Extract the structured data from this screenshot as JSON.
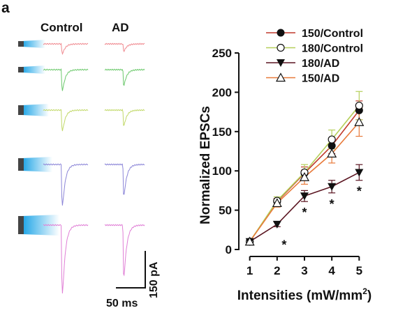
{
  "panel_label": "a",
  "traces": {
    "columns": [
      "Control",
      "AD"
    ],
    "rows": [
      {
        "color": "#f08a90"
      },
      {
        "color": "#6cc96c"
      },
      {
        "color": "#c2d96a"
      },
      {
        "color": "#8c86d8"
      },
      {
        "color": "#e07fd6"
      }
    ],
    "scale_bar_current": "150 pA",
    "scale_bar_time": "50 ms"
  },
  "chart_data": {
    "type": "line",
    "xlabel": "Intensities (mW/mm",
    "xlabel_sup": "2",
    "xlabel_end": ")",
    "ylabel": "Normalized EPSCs",
    "x": [
      1,
      2,
      3,
      4,
      5
    ],
    "xlim": [
      0.6,
      5.4
    ],
    "ylim": [
      0,
      250
    ],
    "yticks": [
      0,
      50,
      100,
      150,
      200,
      250
    ],
    "series": [
      {
        "name": "150/Control",
        "color": "#c0392b",
        "marker": "filled-circle",
        "values": [
          10,
          61,
          97,
          132,
          177
        ],
        "errors": [
          0,
          4,
          8,
          10,
          12
        ]
      },
      {
        "name": "180/Control",
        "color": "#b5cf5a",
        "marker": "open-circle",
        "values": [
          10,
          62,
          98,
          140,
          183
        ],
        "errors": [
          0,
          5,
          10,
          12,
          18
        ]
      },
      {
        "name": "180/AD",
        "color": "#5a1420",
        "marker": "filled-triangle-down",
        "values": [
          10,
          32,
          68,
          80,
          98
        ],
        "errors": [
          0,
          3,
          7,
          8,
          10
        ]
      },
      {
        "name": "150/AD",
        "color": "#e87a3a",
        "marker": "open-triangle-up",
        "values": [
          10,
          59,
          92,
          122,
          162
        ],
        "errors": [
          0,
          5,
          9,
          12,
          18
        ]
      }
    ],
    "significance": {
      "symbol": "*",
      "at_x": [
        2,
        3,
        4,
        5
      ],
      "series": "180/AD"
    },
    "legend_position": "top"
  }
}
